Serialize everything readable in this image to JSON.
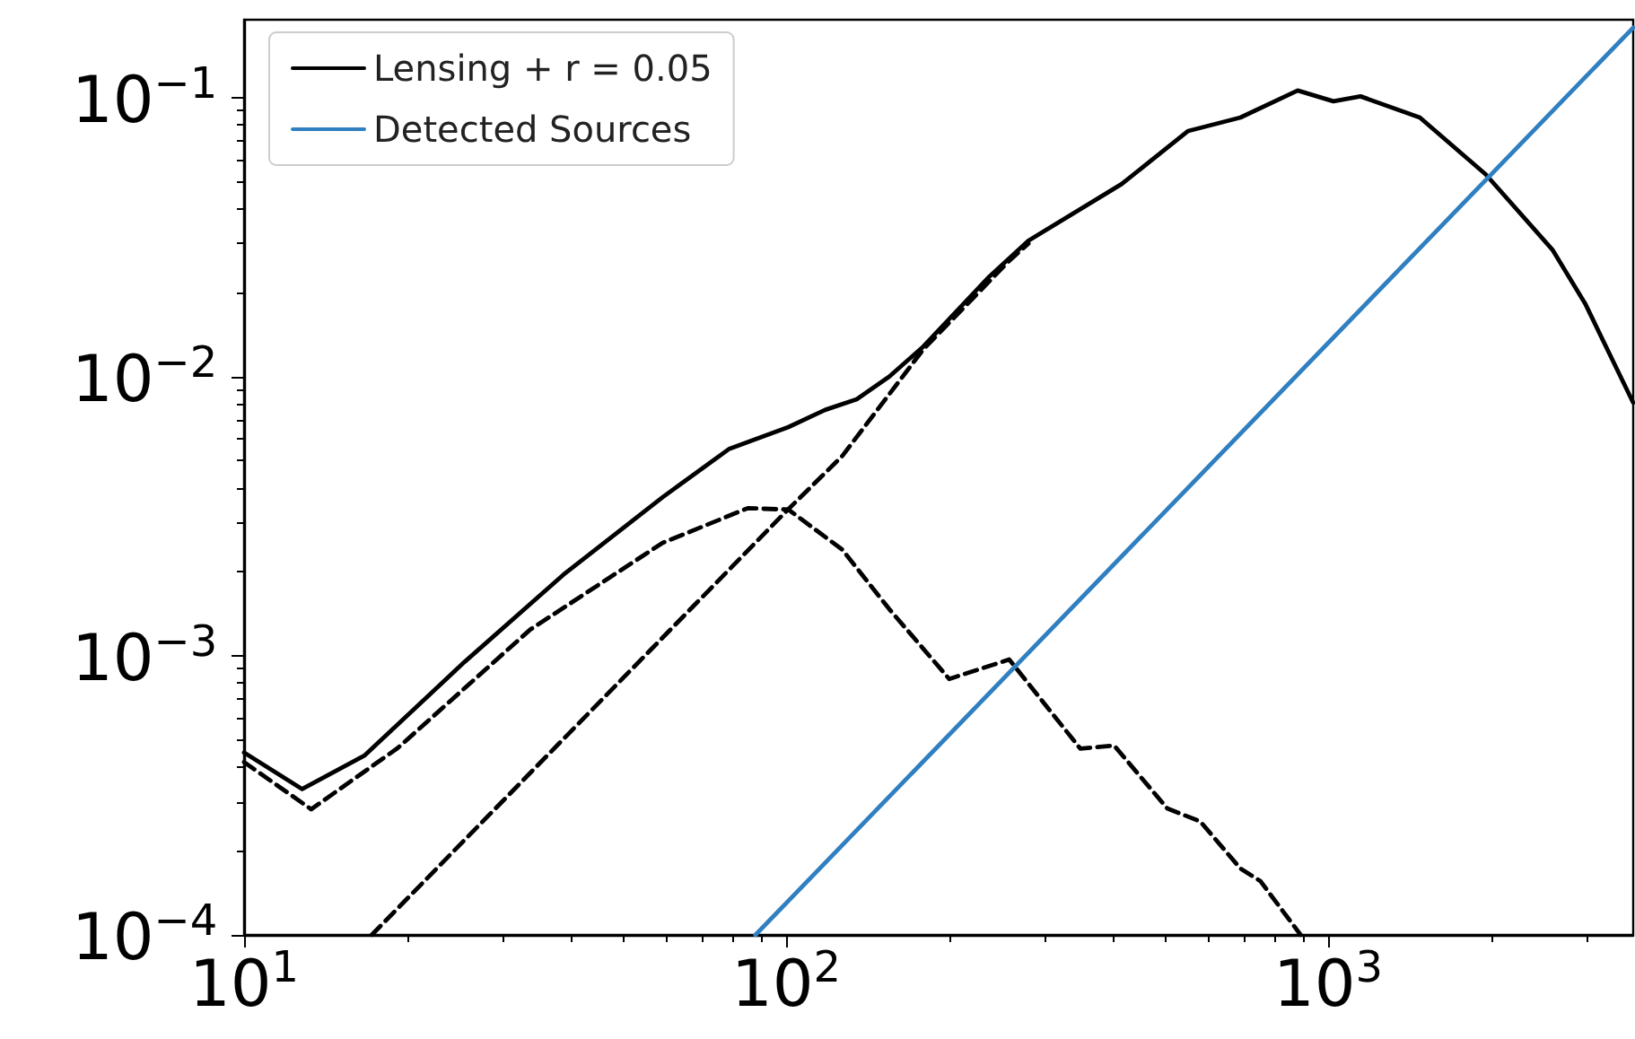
{
  "chart_data": {
    "type": "line",
    "log": "xy",
    "grid": false,
    "legend": "top left",
    "marker": "none",
    "xlim": [
      10,
      3656
    ],
    "ylim": [
      0.0001,
      0.19
    ],
    "xticks": [
      {
        "value": 10,
        "label": "10$^{1}$"
      },
      {
        "value": 100,
        "label": "10$^{2}$"
      },
      {
        "value": 1000,
        "label": "10$^{3}$"
      }
    ],
    "yticks": [
      {
        "value": 0.0001,
        "label": "10$^{−4}$"
      },
      {
        "value": 0.001,
        "label": "10$^{−3}$"
      },
      {
        "value": 0.01,
        "label": "10$^{−2}$"
      },
      {
        "value": 0.1,
        "label": "10$^{−1}$"
      }
    ],
    "series": [
      {
        "name": "Lensing + r = 0.05",
        "color": "#000000",
        "line_style": "solid",
        "x": [
          10,
          12.8,
          16.7,
          25.5,
          38.8,
          59.2,
          78.4,
          101,
          118,
          135,
          155,
          179,
          237,
          280,
          416,
          552,
          689,
          879,
          1023,
          1148,
          1477,
          1955,
          2594,
          2980,
          3656
        ],
        "values": [
          0.00045,
          0.000333,
          0.00044,
          0.00095,
          0.00195,
          0.0037,
          0.0055,
          0.0066,
          0.0076,
          0.0083,
          0.01,
          0.0128,
          0.0228,
          0.0307,
          0.049,
          0.0759,
          0.0848,
          0.106,
          0.097,
          0.101,
          0.0848,
          0.053,
          0.0285,
          0.0183,
          0.00807
        ]
      },
      {
        "color": "#000000",
        "line_style": "dashed",
        "x": [
          10,
          13.3,
          19.2,
          33.7,
          59.2,
          85,
          101,
          127,
          155,
          200,
          258,
          349,
          403,
          505,
          581,
          689,
          750,
          890
        ],
        "values": [
          0.000416,
          0.000282,
          0.000467,
          0.00124,
          0.00254,
          0.00338,
          0.00334,
          0.0024,
          0.00147,
          0.000826,
          0.00097,
          0.000465,
          0.000477,
          0.000284,
          0.000255,
          0.000173,
          0.000156,
          0.0001
        ]
      },
      {
        "color": "#000000",
        "line_style": "dashed",
        "x": [
          17.2,
          100,
          127,
          179,
          258,
          280
        ],
        "values": [
          0.0001,
          0.00329,
          0.0052,
          0.0125,
          0.026,
          0.03
        ]
      },
      {
        "name": "Detected Sources",
        "color": "#2f7fc1",
        "line_style": "solid",
        "x": [
          87.8,
          3656
        ],
        "values": [
          0.0001,
          0.178
        ]
      }
    ]
  }
}
